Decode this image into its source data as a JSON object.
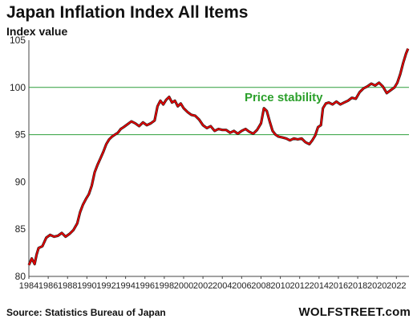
{
  "chart_data": {
    "type": "line",
    "title": "Japan Inflation Index All Items",
    "subtitle": "Index value",
    "source": "Source: Statistics Bureau of Japan",
    "brand": "WOLFSTREET.com",
    "annotation": "Price stability",
    "ylim": [
      80,
      105
    ],
    "yticks": [
      80,
      85,
      90,
      95,
      100,
      105
    ],
    "xlim": [
      1984,
      2023.3
    ],
    "xticks": [
      1984,
      1986,
      1988,
      1990,
      1992,
      1994,
      1996,
      1998,
      2000,
      2002,
      2004,
      2006,
      2008,
      2010,
      2012,
      2014,
      2016,
      2018,
      2020,
      2022
    ],
    "reference_lines": [
      95,
      100
    ],
    "grid": false,
    "colors": {
      "line": "#e00000",
      "shadow": "#222222",
      "reference": "#2e9e3a",
      "annotation": "#2ca02c"
    },
    "series": [
      {
        "x": [
          1984.0,
          1984.3,
          1984.6,
          1984.8,
          1985.0,
          1985.4,
          1985.8,
          1986.2,
          1986.6,
          1987.0,
          1987.4,
          1987.8,
          1988.2,
          1988.6,
          1989.0,
          1989.3,
          1989.6,
          1989.9,
          1990.2,
          1990.5,
          1990.8,
          1991.1,
          1991.4,
          1991.7,
          1992.0,
          1992.3,
          1992.6,
          1992.9,
          1993.2,
          1993.5,
          1993.8,
          1994.2,
          1994.6,
          1995.0,
          1995.4,
          1995.8,
          1996.2,
          1996.6,
          1997.0,
          1997.3,
          1997.6,
          1997.9,
          1998.2,
          1998.5,
          1998.8,
          1999.1,
          1999.4,
          1999.7,
          2000.0,
          2000.4,
          2000.8,
          2001.2,
          2001.6,
          2002.0,
          2002.4,
          2002.8,
          2003.2,
          2003.6,
          2004.0,
          2004.4,
          2004.8,
          2005.2,
          2005.6,
          2006.0,
          2006.4,
          2006.8,
          2007.2,
          2007.6,
          2008.0,
          2008.3,
          2008.6,
          2008.9,
          2009.2,
          2009.5,
          2009.8,
          2010.2,
          2010.6,
          2011.0,
          2011.4,
          2011.8,
          2012.2,
          2012.6,
          2013.0,
          2013.3,
          2013.6,
          2013.9,
          2014.2,
          2014.4,
          2014.7,
          2015.0,
          2015.4,
          2015.8,
          2016.2,
          2016.6,
          2017.0,
          2017.4,
          2017.8,
          2018.2,
          2018.6,
          2019.0,
          2019.4,
          2019.8,
          2020.2,
          2020.6,
          2021.0,
          2021.4,
          2021.8,
          2022.1,
          2022.4,
          2022.7,
          2023.0,
          2023.2
        ],
        "y": [
          81.2,
          81.9,
          81.3,
          82.3,
          83.0,
          83.2,
          84.1,
          84.4,
          84.2,
          84.3,
          84.6,
          84.2,
          84.5,
          84.9,
          85.6,
          86.8,
          87.6,
          88.2,
          88.7,
          89.6,
          91.0,
          91.8,
          92.5,
          93.2,
          94.0,
          94.5,
          94.8,
          95.0,
          95.2,
          95.6,
          95.8,
          96.1,
          96.4,
          96.2,
          95.9,
          96.3,
          96.0,
          96.2,
          96.5,
          98.0,
          98.6,
          98.2,
          98.7,
          99.0,
          98.4,
          98.6,
          98.0,
          98.3,
          97.8,
          97.4,
          97.1,
          97.0,
          96.6,
          96.0,
          95.7,
          95.9,
          95.4,
          95.6,
          95.5,
          95.5,
          95.2,
          95.4,
          95.1,
          95.4,
          95.6,
          95.3,
          95.1,
          95.5,
          96.2,
          97.8,
          97.5,
          96.4,
          95.4,
          95.0,
          94.8,
          94.7,
          94.6,
          94.4,
          94.6,
          94.5,
          94.6,
          94.2,
          94.0,
          94.4,
          94.9,
          95.8,
          96.0,
          97.8,
          98.3,
          98.4,
          98.2,
          98.5,
          98.2,
          98.4,
          98.6,
          98.9,
          98.8,
          99.5,
          99.9,
          100.1,
          100.4,
          100.2,
          100.5,
          100.1,
          99.4,
          99.7,
          100.0,
          100.5,
          101.4,
          102.6,
          103.6,
          104.1
        ]
      }
    ]
  }
}
